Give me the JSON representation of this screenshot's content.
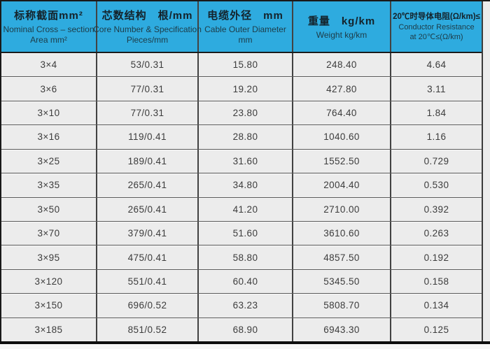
{
  "colors": {
    "header_bg": "#2EABDF",
    "body_bg": "#ECECEC",
    "border_dark": "#1A1A1A",
    "row_separator": "#5A5A5A",
    "body_text": "#3C3C3C"
  },
  "table": {
    "headers": [
      {
        "zh": "标称截面mm²",
        "en": [
          "Nominal Cross – section",
          "Area mm²"
        ]
      },
      {
        "zh": "芯数结构　根/mm",
        "en": [
          "Core Number & Specification",
          "Pieces/mm"
        ]
      },
      {
        "zh": "电缆外径　mm",
        "en": [
          "Cable Outer Diameter",
          "mm"
        ]
      },
      {
        "zh": "重量　kg/km",
        "en": [
          "Weight kg/km"
        ]
      },
      {
        "zh": "20℃时导体电阻(Ω/km)≤",
        "en": [
          "Conductor Resistance",
          "at 20℃≤(Ω/km)"
        ]
      }
    ],
    "rows": [
      [
        "3×4",
        "53/0.31",
        "15.80",
        "248.40",
        "4.64"
      ],
      [
        "3×6",
        "77/0.31",
        "19.20",
        "427.80",
        "3.11"
      ],
      [
        "3×10",
        "77/0.31",
        "23.80",
        "764.40",
        "1.84"
      ],
      [
        "3×16",
        "119/0.41",
        "28.80",
        "1040.60",
        "1.16"
      ],
      [
        "3×25",
        "189/0.41",
        "31.60",
        "1552.50",
        "0.729"
      ],
      [
        "3×35",
        "265/0.41",
        "34.80",
        "2004.40",
        "0.530"
      ],
      [
        "3×50",
        "265/0.41",
        "41.20",
        "2710.00",
        "0.392"
      ],
      [
        "3×70",
        "379/0.41",
        "51.60",
        "3610.60",
        "0.263"
      ],
      [
        "3×95",
        "475/0.41",
        "58.80",
        "4857.50",
        "0.192"
      ],
      [
        "3×120",
        "551/0.41",
        "60.40",
        "5345.50",
        "0.158"
      ],
      [
        "3×150",
        "696/0.52",
        "63.23",
        "5808.70",
        "0.134"
      ],
      [
        "3×185",
        "851/0.52",
        "68.90",
        "6943.30",
        "0.125"
      ]
    ]
  }
}
